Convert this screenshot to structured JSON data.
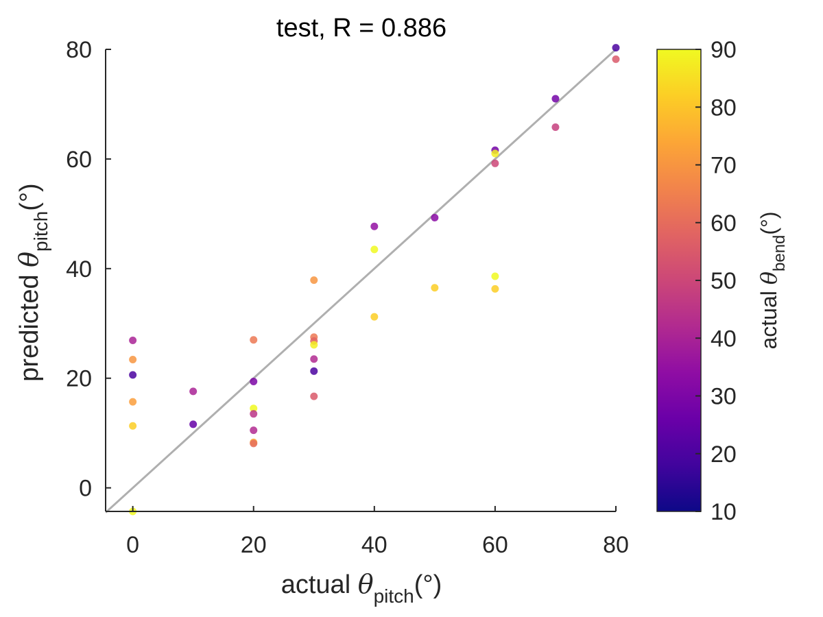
{
  "chart_data": {
    "type": "scatter",
    "title": "test, R = 0.886",
    "xlabel": {
      "prefix": "actual ",
      "symbol": "θ",
      "sub": "pitch",
      "suffix": "(°)"
    },
    "ylabel": {
      "prefix": "predicted ",
      "symbol": "θ",
      "sub": "pitch",
      "suffix": "(°)"
    },
    "xlim": [
      -4.5,
      80
    ],
    "ylim": [
      -4.3,
      80
    ],
    "xticks": [
      "0",
      "20",
      "40",
      "60",
      "80"
    ],
    "xtick_values": [
      0,
      20,
      40,
      60,
      80
    ],
    "yticks": [
      "0",
      "20",
      "40",
      "60",
      "80"
    ],
    "ytick_values": [
      0,
      20,
      40,
      60,
      80
    ],
    "reference_line": {
      "from": [
        -4.5,
        -4.5
      ],
      "to": [
        80,
        80
      ],
      "color": "#a6a6a6"
    },
    "colorbar": {
      "label": {
        "prefix": "actual ",
        "symbol": "θ",
        "sub": "bend",
        "suffix": "(°)"
      },
      "range": [
        10,
        90
      ],
      "ticks": [
        "10",
        "20",
        "30",
        "40",
        "50",
        "60",
        "70",
        "80",
        "90"
      ],
      "tick_values": [
        10,
        20,
        30,
        40,
        50,
        60,
        70,
        80,
        90
      ],
      "colormap": "plasma",
      "stops": [
        "#0d0887",
        "#41049d",
        "#6a00a8",
        "#8f0da4",
        "#b12a90",
        "#cc4778",
        "#e16462",
        "#f2844b",
        "#fca636",
        "#fcce25",
        "#f0f921"
      ]
    },
    "points": [
      {
        "x": 0,
        "y": 26.9,
        "c": 40
      },
      {
        "x": 0,
        "y": 23.4,
        "c": 70
      },
      {
        "x": 0,
        "y": 20.6,
        "c": 20
      },
      {
        "x": 0,
        "y": 15.7,
        "c": 72
      },
      {
        "x": 0,
        "y": 11.3,
        "c": 82
      },
      {
        "x": 0,
        "y": -4.3,
        "c": 90
      },
      {
        "x": 10,
        "y": 17.6,
        "c": 40
      },
      {
        "x": 10,
        "y": 11.6,
        "c": 25
      },
      {
        "x": 20,
        "y": 27.0,
        "c": 63
      },
      {
        "x": 20,
        "y": 19.4,
        "c": 30
      },
      {
        "x": 20,
        "y": 14.5,
        "c": 90
      },
      {
        "x": 20,
        "y": 13.5,
        "c": 45
      },
      {
        "x": 20,
        "y": 10.5,
        "c": 42
      },
      {
        "x": 20,
        "y": 8.3,
        "c": 75
      },
      {
        "x": 20,
        "y": 8.1,
        "c": 60
      },
      {
        "x": 30,
        "y": 37.9,
        "c": 70
      },
      {
        "x": 30,
        "y": 27.5,
        "c": 63
      },
      {
        "x": 30,
        "y": 26.8,
        "c": 58
      },
      {
        "x": 30,
        "y": 26.1,
        "c": 88
      },
      {
        "x": 30,
        "y": 23.5,
        "c": 42
      },
      {
        "x": 30,
        "y": 21.3,
        "c": 20
      },
      {
        "x": 30,
        "y": 16.7,
        "c": 55
      },
      {
        "x": 40,
        "y": 47.7,
        "c": 35
      },
      {
        "x": 40,
        "y": 43.5,
        "c": 90
      },
      {
        "x": 40,
        "y": 31.2,
        "c": 82
      },
      {
        "x": 50,
        "y": 49.3,
        "c": 33
      },
      {
        "x": 50,
        "y": 36.5,
        "c": 82
      },
      {
        "x": 60,
        "y": 61.6,
        "c": 28
      },
      {
        "x": 60,
        "y": 61.0,
        "c": 88
      },
      {
        "x": 60,
        "y": 59.2,
        "c": 50
      },
      {
        "x": 60,
        "y": 38.6,
        "c": 90
      },
      {
        "x": 60,
        "y": 36.3,
        "c": 82
      },
      {
        "x": 70,
        "y": 71.0,
        "c": 28
      },
      {
        "x": 70,
        "y": 65.8,
        "c": 48
      },
      {
        "x": 80,
        "y": 80.3,
        "c": 20
      },
      {
        "x": 80,
        "y": 78.2,
        "c": 55
      }
    ]
  }
}
